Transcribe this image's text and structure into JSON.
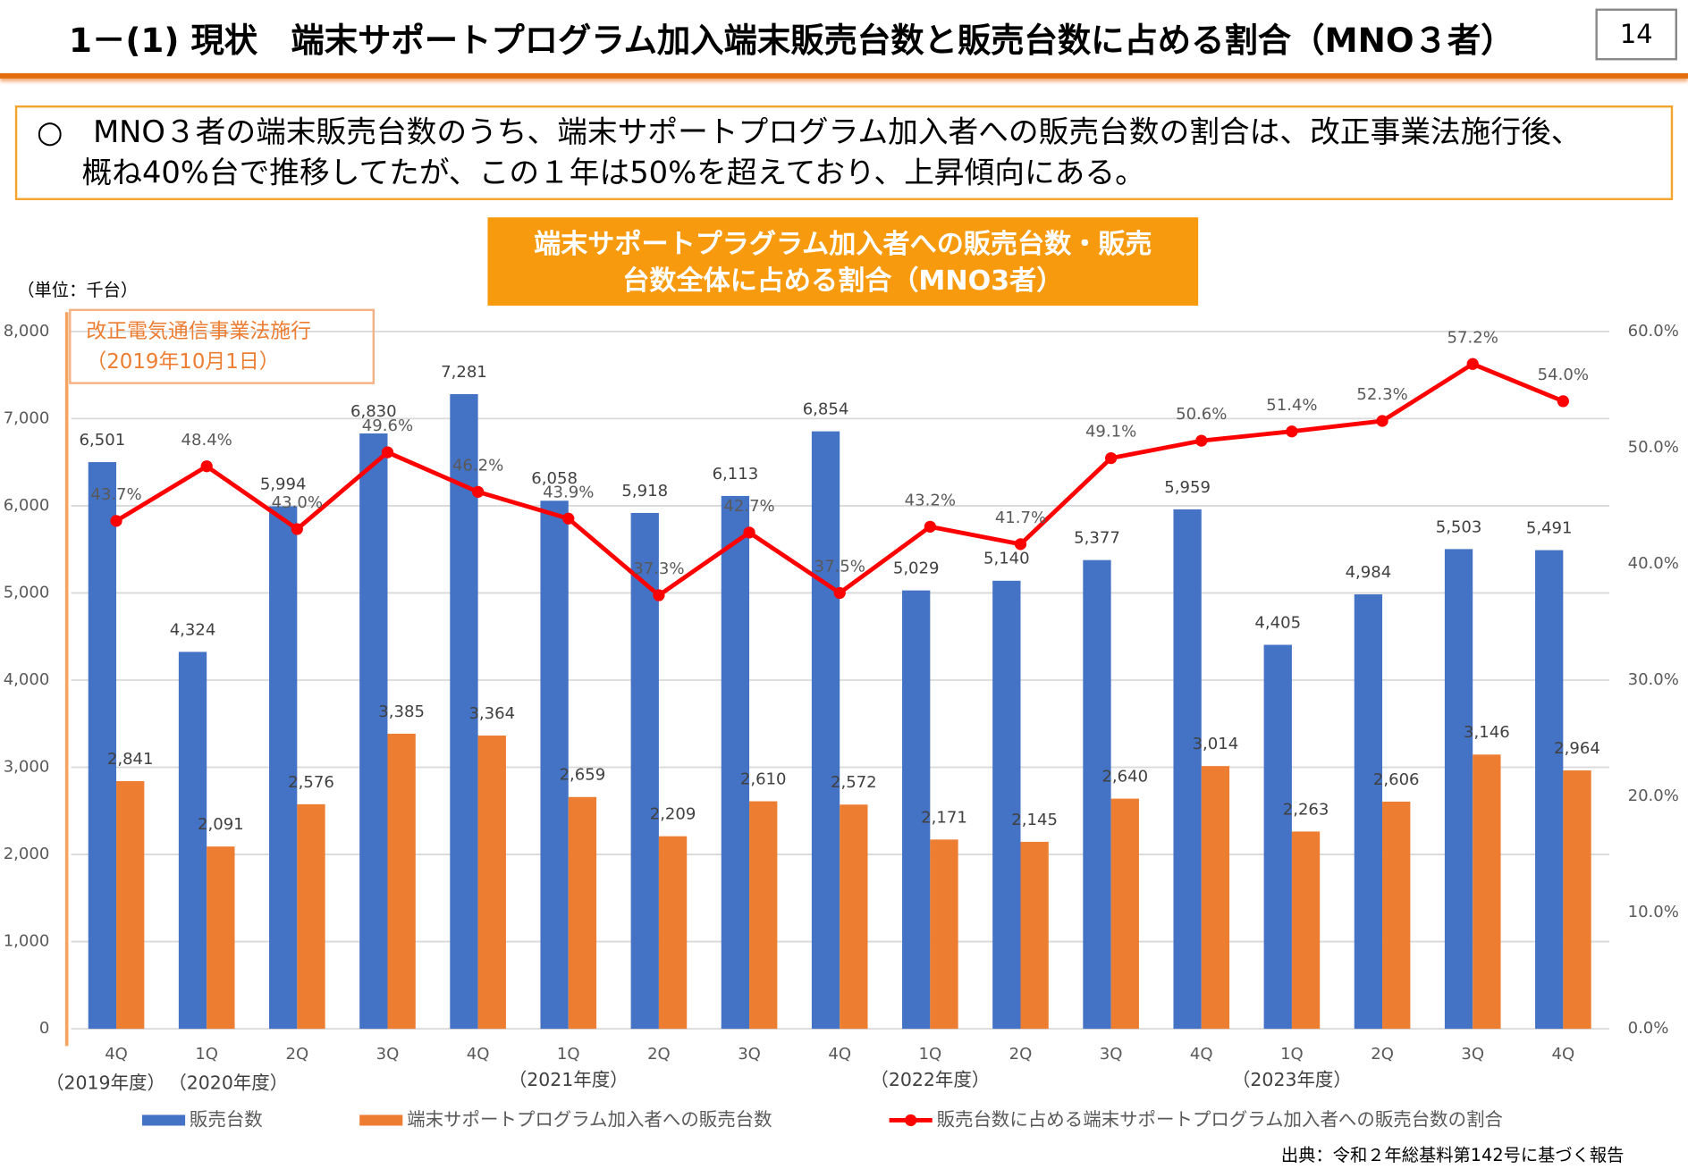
{
  "header": {
    "title": "1－(1) 現状　端末サポートプログラム加入端末販売台数と販売台数に占める割合（MNO３者）",
    "page": "14"
  },
  "summary": [
    "○　MNO３者の端末販売台数のうち、端末サポートプログラム加入者への販売台数の割合は、改正事業法施行後、",
    "概ね40%台で推移してたが、この１年は50%を超えており、上昇傾向にある。"
  ],
  "source": "出典：令和２年総基料第142号に基づく報告",
  "chart_data": {
    "type": "bar",
    "title": [
      "端末サポートプラグラム加入者への販売台数・販売",
      "台数全体に占める割合（MNO3者）"
    ],
    "y_unit": "（単位：千台）",
    "annotation": [
      "改正電気通信事業法施行",
      "（2019年10月1日）"
    ],
    "categories": [
      "4Q",
      "1Q",
      "2Q",
      "3Q",
      "4Q",
      "1Q",
      "2Q",
      "3Q",
      "4Q",
      "1Q",
      "2Q",
      "3Q",
      "4Q",
      "1Q",
      "2Q",
      "3Q",
      "4Q"
    ],
    "fiscal_years": [
      "（2019年度）",
      "（2020年度）",
      null,
      null,
      null,
      "（2021年度）",
      null,
      null,
      null,
      "（2022年度）",
      null,
      null,
      null,
      "（2023年度）",
      null,
      null,
      null
    ],
    "ylim": [
      0,
      8000
    ],
    "yticks": [
      0,
      {
        "value": 1000,
        "label": "1,000"
      },
      {
        "value": 2000,
        "label": "2,000"
      },
      {
        "value": 3000,
        "label": "3,000"
      },
      {
        "value": 4000,
        "label": "4,000"
      },
      {
        "value": 5000,
        "label": "5,000"
      },
      {
        "value": 6000,
        "label": "6,000"
      },
      {
        "value": 7000,
        "label": "7,000"
      },
      {
        "value": 8000,
        "label": "8,000"
      }
    ],
    "y2lim": [
      0,
      60
    ],
    "y2ticks": [
      {
        "value": 0,
        "label": "0.0%"
      },
      {
        "value": 10,
        "label": "10.0%"
      },
      {
        "value": 20,
        "label": "20.0%"
      },
      {
        "value": 30,
        "label": "30.0%"
      },
      {
        "value": 40,
        "label": "40.0%"
      },
      {
        "value": 50,
        "label": "50.0%"
      },
      {
        "value": 60,
        "label": "60.0%"
      }
    ],
    "grid": true,
    "series": [
      {
        "name": "販売台数",
        "type": "bar",
        "color": "#4472c4",
        "values": [
          6501,
          4324,
          5994,
          6830,
          7281,
          6058,
          5918,
          6113,
          6854,
          5029,
          5140,
          5377,
          5959,
          4405,
          4984,
          5503,
          5491
        ],
        "value_labels": [
          "6,501",
          "4,324",
          "5,994",
          "6,830",
          "7,281",
          "6,058",
          "5,918",
          "6,113",
          "6,854",
          "5,029",
          "5,140",
          "5,377",
          "5,959",
          "4,405",
          "4,984",
          "5,503",
          "5,491"
        ]
      },
      {
        "name": "端末サポートプログラム加入者への販売台数",
        "type": "bar",
        "color": "#ed7d31",
        "values": [
          2841,
          2091,
          2576,
          3385,
          3364,
          2659,
          2209,
          2610,
          2572,
          2171,
          2145,
          2640,
          3014,
          2263,
          2606,
          3146,
          2964
        ],
        "value_labels": [
          "2,841",
          "2,091",
          "2,576",
          "3,385",
          "3,364",
          "2,659",
          "2,209",
          "2,610",
          "2,572",
          "2,171",
          "2,145",
          "2,640",
          "3,014",
          "2,263",
          "2,606",
          "3,146",
          "2,964"
        ]
      },
      {
        "name": "販売台数に占める端末サポートプログラム加入者への販売台数の割合",
        "type": "line",
        "axis": "y2",
        "color": "#ff0000",
        "values": [
          43.7,
          48.4,
          43.0,
          49.6,
          46.2,
          43.9,
          37.3,
          42.7,
          37.5,
          43.2,
          41.7,
          49.1,
          50.6,
          51.4,
          52.3,
          57.2,
          54.0
        ],
        "value_labels": [
          "43.7%",
          "48.4%",
          "43.0%",
          "49.6%",
          "46.2%",
          "43.9%",
          "37.3%",
          "42.7%",
          "37.5%",
          "43.2%",
          "41.7%",
          "49.1%",
          "50.6%",
          "51.4%",
          "52.3%",
          "57.2%",
          "54.0%"
        ]
      }
    ]
  }
}
